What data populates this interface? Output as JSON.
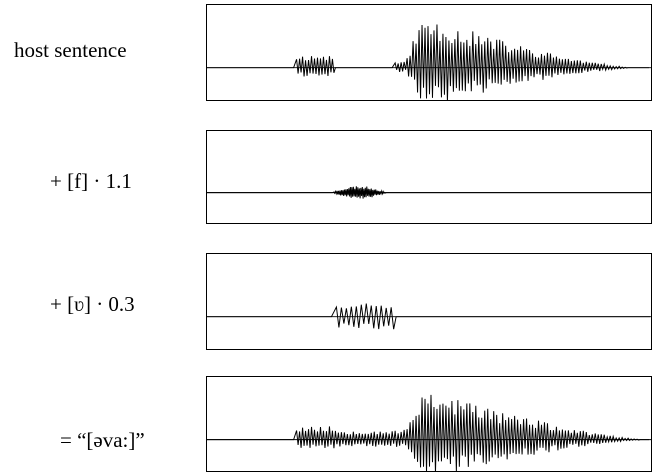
{
  "figure": {
    "rows": [
      {
        "id": "host",
        "label": "host sentence"
      },
      {
        "id": "f",
        "label": "+ [f] · 1.1"
      },
      {
        "id": "v",
        "label": "+ [ʋ] · 0.3"
      },
      {
        "id": "result",
        "label": "= “[əva:]”"
      }
    ]
  },
  "colors": {
    "waveform": "#000000",
    "frame": "#000000",
    "background": "#ffffff"
  }
}
